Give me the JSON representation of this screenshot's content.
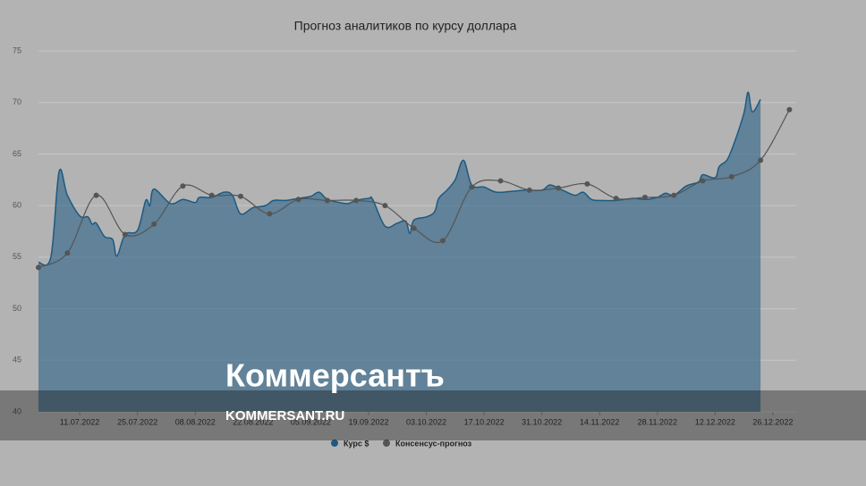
{
  "chart_data": {
    "type": "area-line",
    "title": "Прогноз аналитиков по курсу доллара",
    "xlim": [
      "2022-07-01",
      "2022-12-31"
    ],
    "xticks": [
      {
        "value": "2022-07-11",
        "label": "11.07.2022"
      },
      {
        "value": "2022-07-25",
        "label": "25.07.2022"
      },
      {
        "value": "2022-08-08",
        "label": "08.08.2022"
      },
      {
        "value": "2022-08-22",
        "label": "22.08.2022"
      },
      {
        "value": "2022-09-05",
        "label": "05.09.2022"
      },
      {
        "value": "2022-09-19",
        "label": "19.09.2022"
      },
      {
        "value": "2022-10-03",
        "label": "03.10.2022"
      },
      {
        "value": "2022-10-17",
        "label": "17.10.2022"
      },
      {
        "value": "2022-10-31",
        "label": "31.10.2022"
      },
      {
        "value": "2022-11-14",
        "label": "14.11.2022"
      },
      {
        "value": "2022-11-28",
        "label": "28.11.2022"
      },
      {
        "value": "2022-12-12",
        "label": "12.12.2022"
      },
      {
        "value": "2022-12-26",
        "label": "26.12.2022"
      }
    ],
    "ylim": [
      40,
      75
    ],
    "yticks": [
      40,
      45,
      50,
      55,
      60,
      65,
      70,
      75
    ],
    "grid": true,
    "legend": "bottom",
    "series": [
      {
        "name": "Курс $",
        "color": "#1d5a82",
        "kind": "area",
        "x": [
          "2022-07-01",
          "2022-07-04",
          "2022-07-06",
          "2022-07-08",
          "2022-07-11",
          "2022-07-13",
          "2022-07-14",
          "2022-07-15",
          "2022-07-17",
          "2022-07-19",
          "2022-07-20",
          "2022-07-22",
          "2022-07-25",
          "2022-07-27",
          "2022-07-28",
          "2022-07-29",
          "2022-08-02",
          "2022-08-05",
          "2022-08-08",
          "2022-08-09",
          "2022-08-12",
          "2022-08-15",
          "2022-08-17",
          "2022-08-19",
          "2022-08-22",
          "2022-08-25",
          "2022-08-27",
          "2022-08-30",
          "2022-09-02",
          "2022-09-05",
          "2022-09-07",
          "2022-09-09",
          "2022-09-12",
          "2022-09-14",
          "2022-09-16",
          "2022-09-19",
          "2022-09-20",
          "2022-09-23",
          "2022-09-26",
          "2022-09-28",
          "2022-09-29",
          "2022-09-30",
          "2022-10-03",
          "2022-10-05",
          "2022-10-06",
          "2022-10-08",
          "2022-10-10",
          "2022-10-12",
          "2022-10-14",
          "2022-10-17",
          "2022-10-20",
          "2022-10-24",
          "2022-10-27",
          "2022-10-31",
          "2022-11-02",
          "2022-11-05",
          "2022-11-08",
          "2022-11-10",
          "2022-11-12",
          "2022-11-14",
          "2022-11-18",
          "2022-11-22",
          "2022-11-25",
          "2022-11-28",
          "2022-11-30",
          "2022-12-02",
          "2022-12-05",
          "2022-12-08",
          "2022-12-09",
          "2022-12-12",
          "2022-12-13",
          "2022-12-15",
          "2022-12-17",
          "2022-12-19",
          "2022-12-20",
          "2022-12-21",
          "2022-12-23"
        ],
        "values": [
          54.5,
          55.0,
          63.3,
          61.0,
          59.0,
          58.9,
          58.2,
          58.3,
          57.0,
          56.7,
          55.1,
          57.2,
          57.6,
          60.5,
          60.0,
          61.6,
          60.2,
          60.6,
          60.3,
          60.8,
          60.8,
          61.3,
          61.0,
          59.2,
          59.8,
          60.0,
          60.5,
          60.5,
          60.7,
          60.9,
          61.3,
          60.6,
          60.3,
          60.2,
          60.5,
          60.7,
          60.6,
          58.0,
          58.3,
          58.5,
          57.3,
          58.6,
          58.9,
          59.4,
          60.7,
          61.5,
          62.5,
          64.4,
          62.0,
          61.8,
          61.3,
          61.4,
          61.5,
          61.5,
          62.0,
          61.5,
          61.0,
          61.3,
          60.6,
          60.5,
          60.5,
          60.7,
          60.6,
          60.8,
          61.2,
          61.0,
          61.9,
          62.3,
          63.0,
          62.7,
          63.8,
          64.5,
          66.5,
          69.0,
          71.0,
          69.1,
          70.3
        ]
      },
      {
        "name": "Консенсус-прогноз",
        "color": "#555555",
        "kind": "line",
        "x": [
          "2022-07-01",
          "2022-07-08",
          "2022-07-15",
          "2022-07-22",
          "2022-07-29",
          "2022-08-05",
          "2022-08-12",
          "2022-08-19",
          "2022-08-26",
          "2022-09-02",
          "2022-09-09",
          "2022-09-16",
          "2022-09-23",
          "2022-09-30",
          "2022-10-07",
          "2022-10-14",
          "2022-10-21",
          "2022-10-28",
          "2022-11-04",
          "2022-11-11",
          "2022-11-18",
          "2022-11-25",
          "2022-12-02",
          "2022-12-09",
          "2022-12-16",
          "2022-12-23",
          "2022-12-30"
        ],
        "values": [
          54.0,
          55.4,
          61.0,
          57.2,
          58.2,
          61.9,
          61.0,
          60.9,
          59.2,
          60.6,
          60.5,
          60.5,
          60.0,
          57.8,
          56.6,
          61.8,
          62.4,
          61.5,
          61.7,
          62.1,
          60.7,
          60.8,
          61.0,
          62.4,
          62.8,
          64.4,
          69.3
        ]
      }
    ]
  },
  "watermark": {
    "logo": "Коммерсантъ",
    "url": "KOMMERSANT.RU"
  }
}
